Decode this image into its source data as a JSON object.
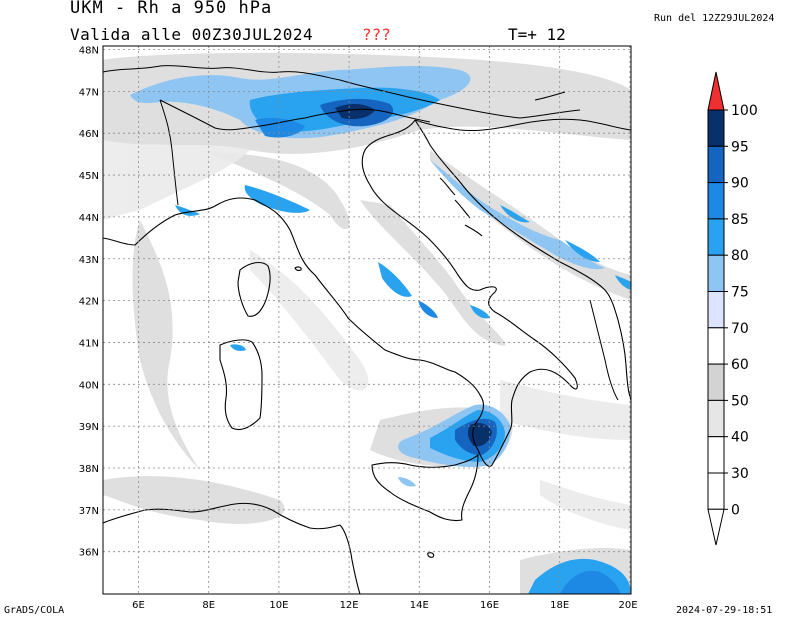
{
  "header": {
    "title": "UKM - Rh a 950 hPa",
    "validity": "Valida alle 00Z30JUL2024",
    "flag": "???",
    "step": "T=+ 12",
    "run": "Run del 12Z29JUL2024"
  },
  "footer": {
    "software": "GrADS/COLA",
    "timestamp": "2024-07-29-18:51"
  },
  "map": {
    "lon_labels": [
      "6E",
      "8E",
      "10E",
      "12E",
      "14E",
      "16E",
      "18E",
      "20E"
    ],
    "lat_labels": [
      "48N",
      "47N",
      "46N",
      "45N",
      "44N",
      "43N",
      "42N",
      "41N",
      "40N",
      "39N",
      "38N",
      "37N",
      "36N"
    ]
  },
  "colorbar": {
    "labels": [
      "100",
      "95",
      "90",
      "85",
      "80",
      "75",
      "70",
      "60",
      "50",
      "40",
      "30",
      "0"
    ],
    "colors": [
      "#08306b",
      "#1565c0",
      "#1e88e5",
      "#29a3ef",
      "#8fc5f2",
      "#dde4ff",
      "#ffffff",
      "#d3d3d3",
      "#e6e6e6",
      "#ffffff",
      "#ffffff",
      "#ffffff"
    ],
    "overflow_color": "#f03030"
  }
}
